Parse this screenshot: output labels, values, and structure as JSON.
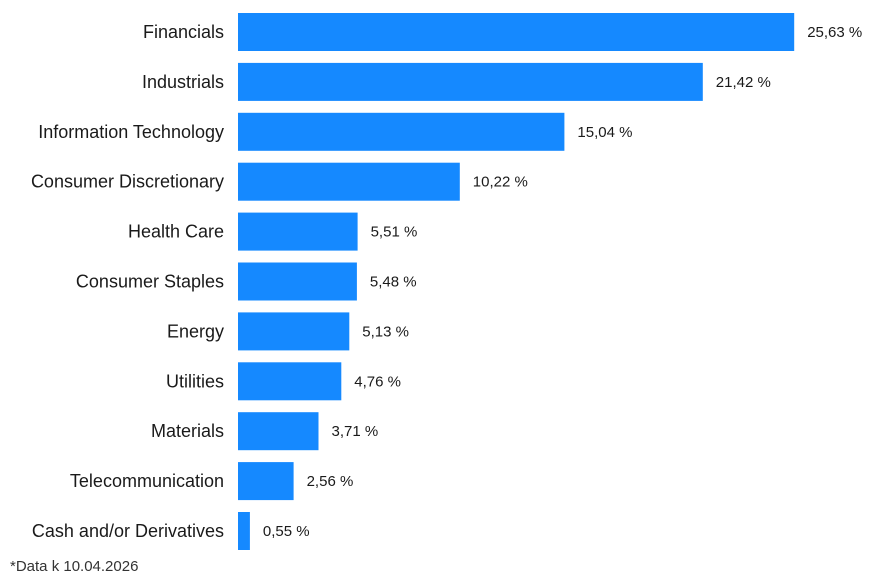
{
  "chart_data": {
    "type": "bar",
    "orientation": "horizontal",
    "categories": [
      "Financials",
      "Industrials",
      "Information Technology",
      "Consumer Discretionary",
      "Health Care",
      "Consumer Staples",
      "Energy",
      "Utilities",
      "Materials",
      "Telecommunication",
      "Cash and/or Derivatives"
    ],
    "values": [
      25.63,
      21.42,
      15.04,
      10.22,
      5.51,
      5.48,
      5.13,
      4.76,
      3.71,
      2.56,
      0.55
    ],
    "value_labels": [
      "25,63 %",
      "21,42 %",
      "15,04 %",
      "10,22 %",
      "5,51 %",
      "5,48 %",
      "5,13 %",
      "4,76 %",
      "3,71 %",
      "2,56 %",
      "0,55 %"
    ],
    "unit": "%",
    "bar_color": "#1589FF",
    "grid": false,
    "legend": "none"
  },
  "footnote": "*Data k 10.04.2026"
}
